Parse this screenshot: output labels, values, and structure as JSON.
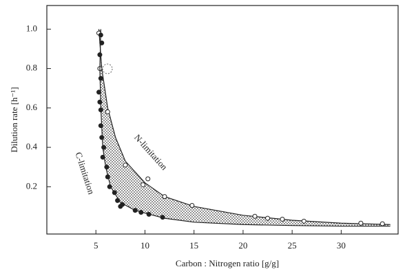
{
  "chart_data": {
    "type": "scatter",
    "xlabel": "Carbon : Nitrogen ratio [g/g]",
    "ylabel": "Dilution rate [h⁻¹]",
    "xlim": [
      0,
      35.8
    ],
    "ylim": [
      -0.04,
      1.12
    ],
    "xticks": [
      5,
      10,
      15,
      20,
      25,
      30
    ],
    "yticks": [
      0.2,
      0.4,
      0.6,
      {
        "value": 1,
        "label": "1.0"
      },
      0.8
    ],
    "series": [
      {
        "name": "N-limitation",
        "marker": "open",
        "color": "#222",
        "x": [
          5.3,
          5.4,
          6.2,
          8.0,
          9.8,
          10.3,
          12.0,
          14.8,
          21.2,
          22.5,
          24.0,
          26.2,
          32.0,
          34.2
        ],
        "values": [
          0.98,
          0.8,
          0.58,
          0.31,
          0.21,
          0.24,
          0.15,
          0.105,
          0.05,
          0.04,
          0.035,
          0.025,
          0.015,
          0.012
        ],
        "curve_x": [
          5.3,
          5.6,
          6.2,
          7.0,
          8.0,
          10.0,
          12.0,
          15.0,
          20.0,
          25.0,
          30.0,
          35.0
        ],
        "curve_y": [
          1.0,
          0.8,
          0.6,
          0.45,
          0.33,
          0.22,
          0.15,
          0.1,
          0.055,
          0.03,
          0.015,
          0.008
        ]
      },
      {
        "name": "C-limitation",
        "marker": "filled",
        "color": "#222",
        "x": [
          5.5,
          5.6,
          5.4,
          5.5,
          5.3,
          5.4,
          5.5,
          5.5,
          5.6,
          5.8,
          5.7,
          6.1,
          6.2,
          6.4,
          6.9,
          7.2,
          7.5,
          7.7,
          9.0,
          9.6,
          10.4,
          11.8
        ],
        "values": [
          0.97,
          0.93,
          0.87,
          0.75,
          0.68,
          0.63,
          0.59,
          0.51,
          0.45,
          0.4,
          0.35,
          0.3,
          0.25,
          0.2,
          0.17,
          0.13,
          0.1,
          0.11,
          0.08,
          0.07,
          0.06,
          0.045
        ],
        "curve_x": [
          5.5,
          5.4,
          5.5,
          5.7,
          6.0,
          6.5,
          7.5,
          9.0,
          12.0,
          15.0,
          20.0,
          25.0,
          30.0,
          35.0
        ],
        "curve_y": [
          1.0,
          0.8,
          0.6,
          0.4,
          0.3,
          0.2,
          0.12,
          0.08,
          0.04,
          0.02,
          0.008,
          0.003,
          0,
          0
        ]
      }
    ]
  }
}
